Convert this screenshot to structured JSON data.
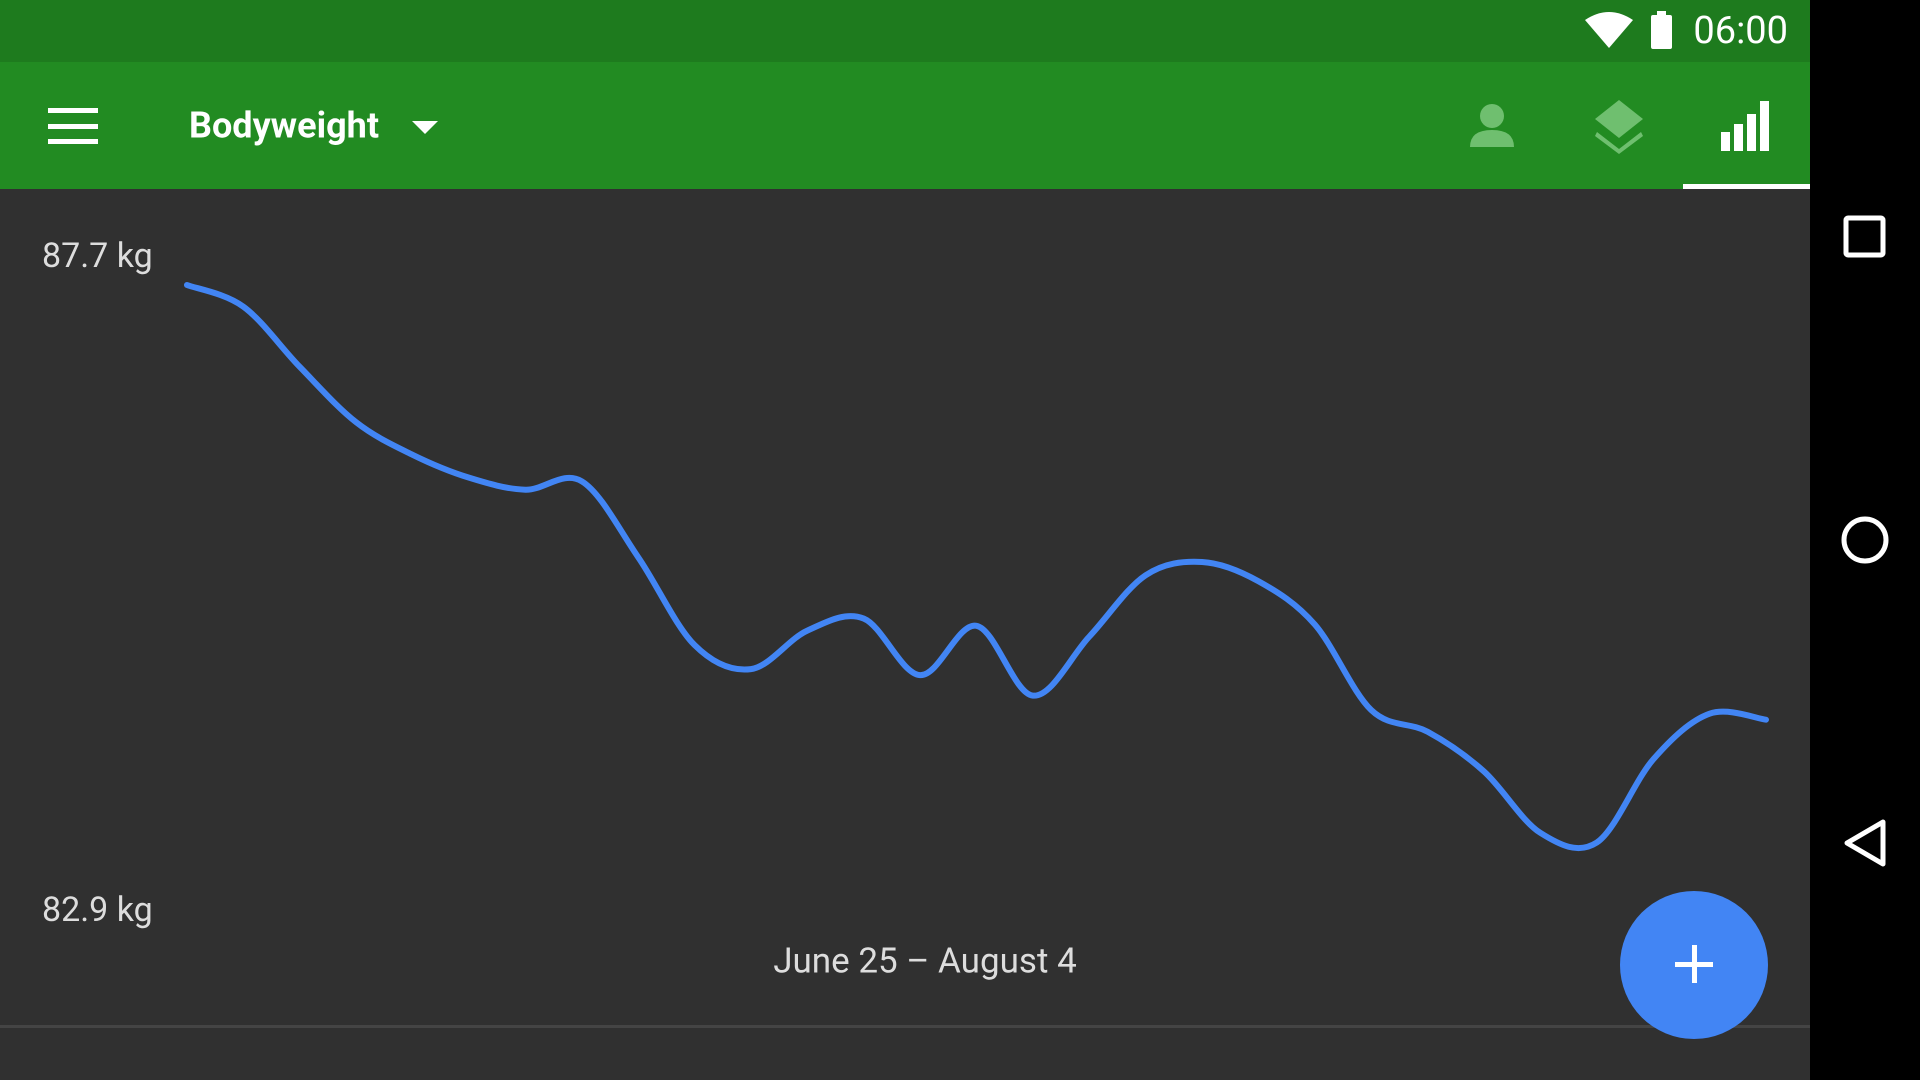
{
  "status_bar": {
    "time": "06:00"
  },
  "toolbar": {
    "title": "Bodyweight"
  },
  "chart_data": {
    "type": "line",
    "values": [
      87.7,
      87.52,
      87.02,
      86.56,
      86.29,
      86.1,
      86.0,
      86.07,
      85.44,
      84.71,
      84.51,
      84.83,
      84.93,
      84.46,
      84.87,
      84.29,
      84.78,
      85.29,
      85.4,
      85.24,
      84.88,
      84.17,
      83.99,
      83.66,
      83.15,
      83.07,
      83.76,
      84.14,
      84.09
    ],
    "color": "#4285f4",
    "ylim": [
      82.9,
      87.7
    ],
    "yticks": [
      {
        "value": 87.7,
        "label": "87.7 kg"
      },
      {
        "value": 82.9,
        "label": "82.9 kg"
      }
    ],
    "xlabel": "June 25 – August 4"
  }
}
